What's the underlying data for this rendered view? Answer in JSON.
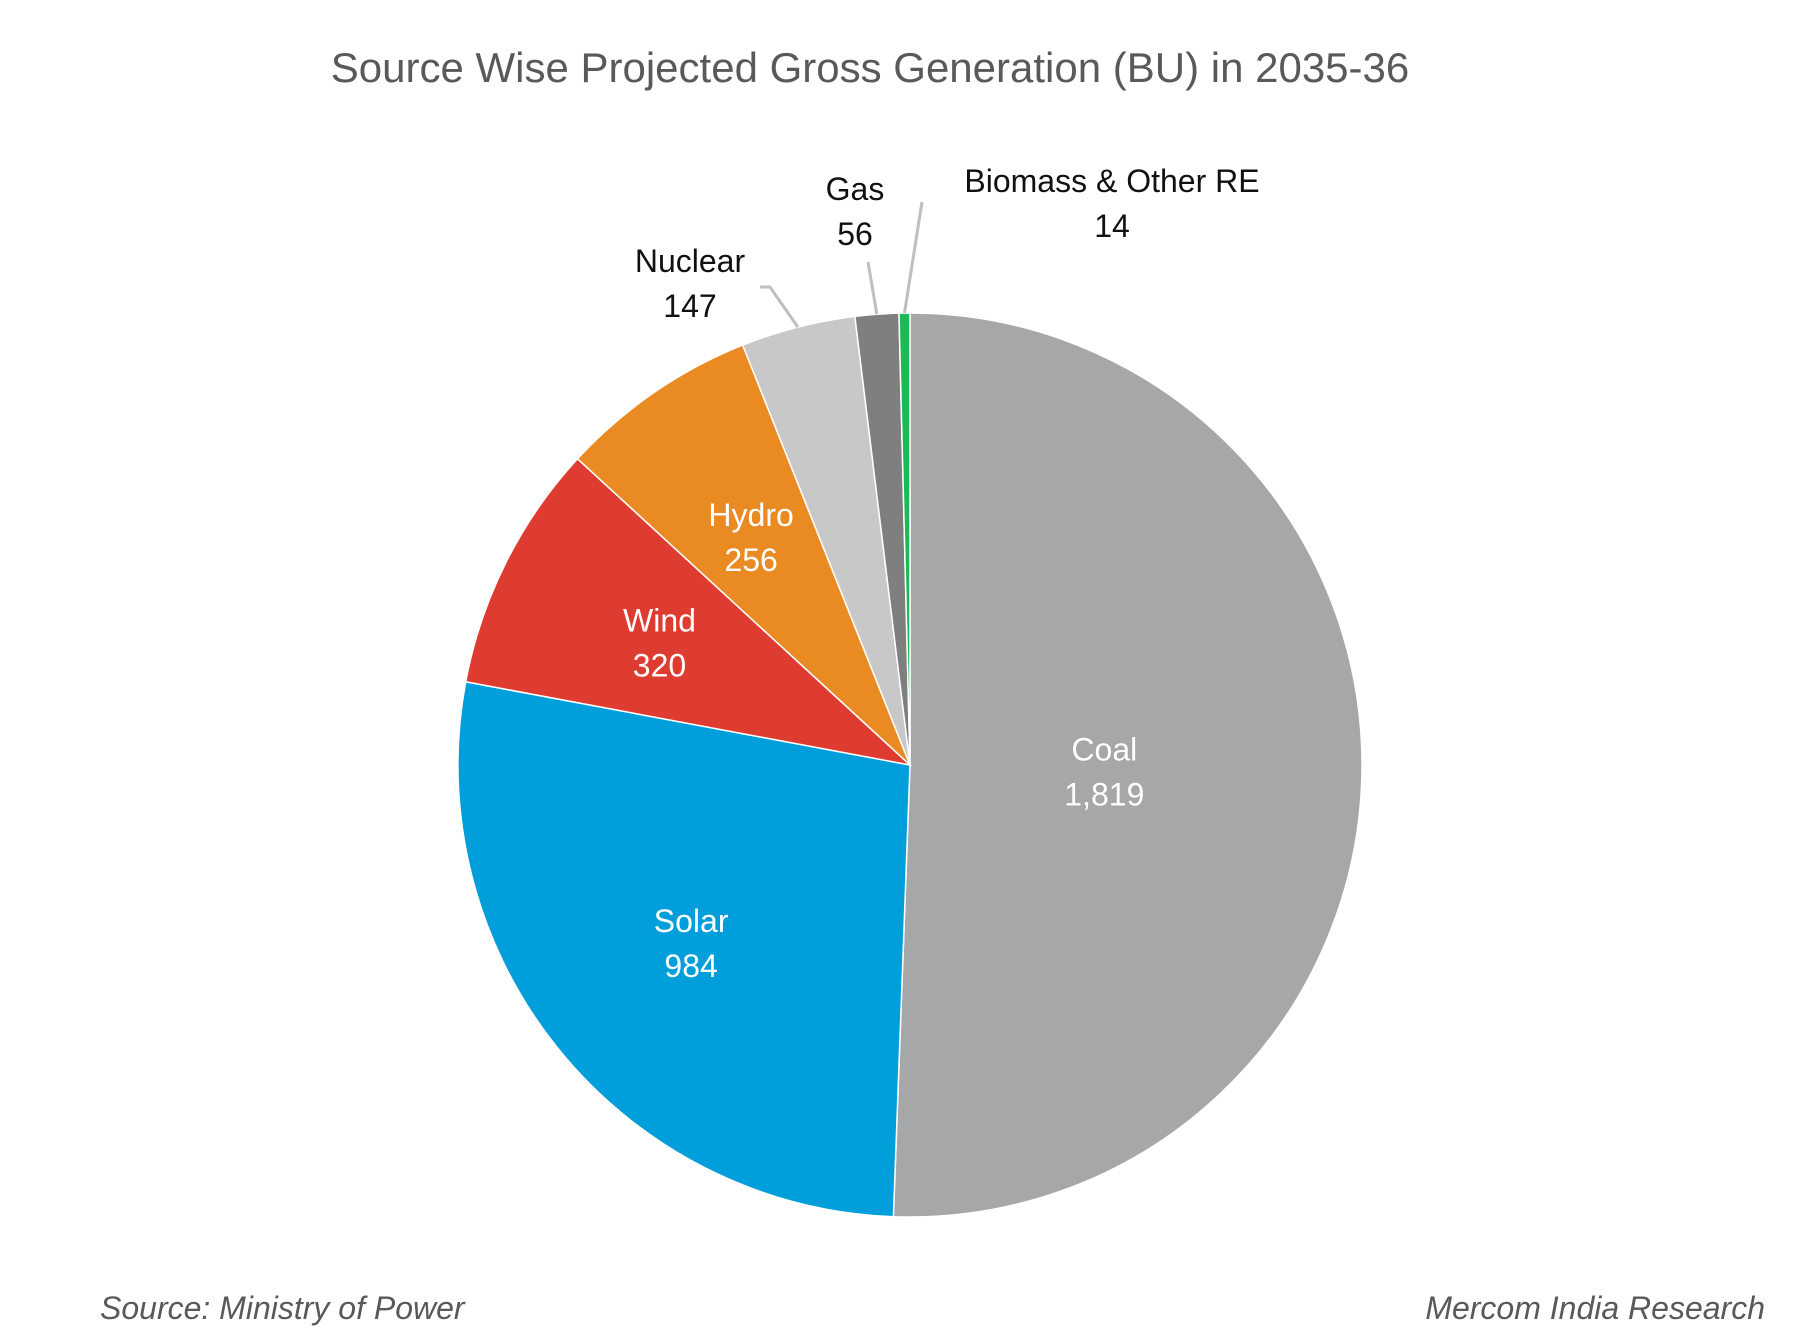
{
  "chart_data": {
    "type": "pie",
    "title": "Source Wise Projected Gross Generation (BU) in 2035-36",
    "slices": [
      {
        "label": "Coal",
        "value": 1819,
        "display": "1,819",
        "color": "#a6a7a9",
        "label_color": "#ffffff",
        "label_placement": "inside"
      },
      {
        "label": "Solar",
        "value": 984,
        "display": "984",
        "color": "#009fdb",
        "label_color": "#ffffff",
        "label_placement": "inside"
      },
      {
        "label": "Wind",
        "value": 320,
        "display": "320",
        "color": "#de3c30",
        "label_color": "#ffffff",
        "label_placement": "inside"
      },
      {
        "label": "Hydro",
        "value": 256,
        "display": "256",
        "color": "#ea8a23",
        "label_color": "#ffffff",
        "label_placement": "inside"
      },
      {
        "label": "Nuclear",
        "value": 147,
        "display": "147",
        "color": "#c8c8c8",
        "label_color": "#111111",
        "label_placement": "outside"
      },
      {
        "label": "Gas",
        "value": 56,
        "display": "56",
        "color": "#7f7f7f",
        "label_color": "#111111",
        "label_placement": "outside"
      },
      {
        "label": "Biomass & Other RE",
        "value": 14,
        "display": "14",
        "color": "#1db954",
        "label_color": "#111111",
        "label_placement": "outside"
      }
    ]
  },
  "footer": {
    "source": "Source: Ministry of Power",
    "credit": "Mercom India Research"
  }
}
